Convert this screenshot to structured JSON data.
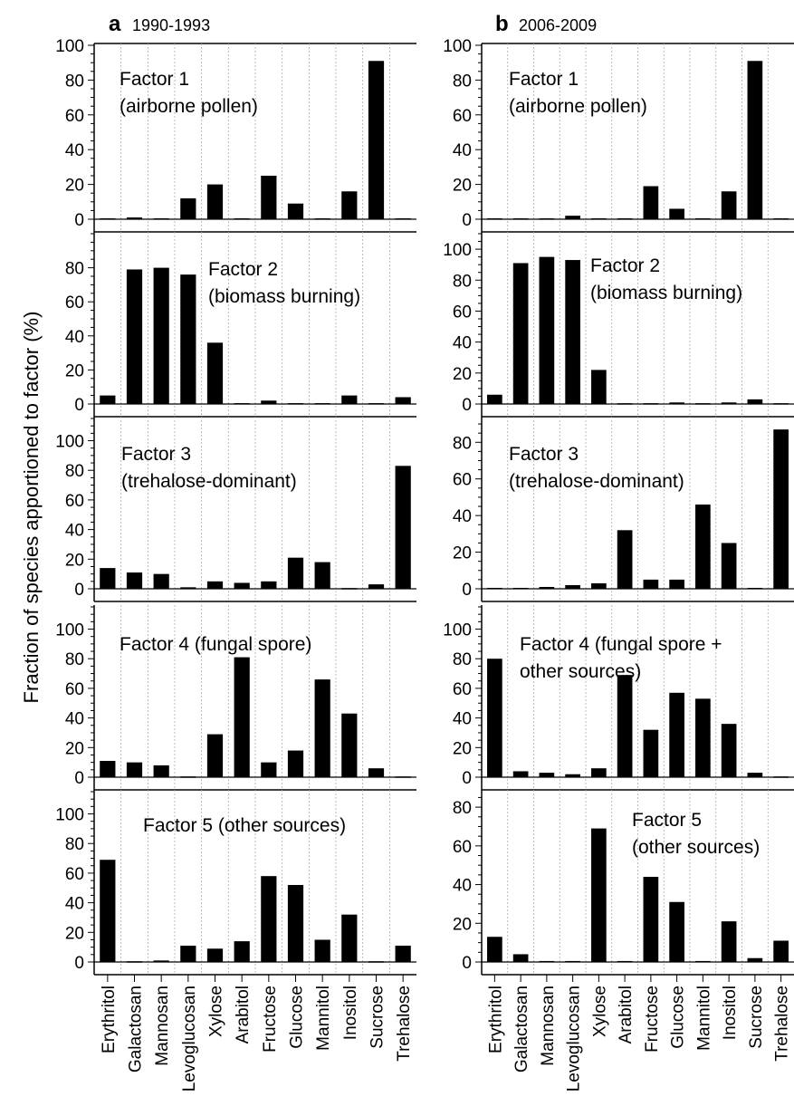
{
  "figure": {
    "ylabel": "Fraction of species apportioned to factor (%)"
  },
  "categories": [
    "Erythritol",
    "Galactosan",
    "Mannosan",
    "Levoglucosan",
    "Xylose",
    "Arabitol",
    "Fructose",
    "Glucose",
    "Mannitol",
    "Inositol",
    "Sucrose",
    "Trehalose"
  ],
  "chart_data": [
    {
      "type": "bar",
      "panel": "a",
      "period": "1990-1993",
      "factor": "Factor 1",
      "title_lines": [
        "Factor 1",
        "(airborne pollen)"
      ],
      "ylim": [
        0,
        100
      ],
      "ticks": [
        0,
        20,
        40,
        60,
        80,
        100
      ],
      "values": [
        0.5,
        1,
        0.5,
        12,
        20,
        0.5,
        25,
        9,
        0.5,
        16,
        91,
        0.5
      ]
    },
    {
      "type": "bar",
      "panel": "a",
      "period": "1990-1993",
      "factor": "Factor 2",
      "title_lines": [
        "Factor 2",
        "(biomass burning)"
      ],
      "ylim": [
        0,
        100
      ],
      "ticks": [
        0,
        20,
        40,
        60,
        80
      ],
      "values": [
        5,
        79,
        80,
        76,
        36,
        0.5,
        2,
        0.5,
        0.5,
        5,
        0.5,
        4
      ]
    },
    {
      "type": "bar",
      "panel": "a",
      "period": "1990-1993",
      "factor": "Factor 3",
      "title_lines": [
        "Factor 3",
        "(trehalose-dominant)"
      ],
      "ylim": [
        0,
        115
      ],
      "ticks": [
        0,
        20,
        40,
        60,
        80,
        100
      ],
      "values": [
        14,
        11,
        10,
        1,
        5,
        4,
        5,
        21,
        18,
        0.5,
        3,
        83
      ]
    },
    {
      "type": "bar",
      "panel": "a",
      "period": "1990-1993",
      "factor": "Factor 4",
      "title_lines": [
        "Factor 4 (fungal spore)"
      ],
      "ylim": [
        0,
        115
      ],
      "ticks": [
        0,
        20,
        40,
        60,
        80,
        100
      ],
      "values": [
        11,
        10,
        8,
        0.5,
        29,
        81,
        10,
        18,
        66,
        43,
        6,
        0.5
      ]
    },
    {
      "type": "bar",
      "panel": "a",
      "period": "1990-1993",
      "factor": "Factor 5",
      "title_lines": [
        "Factor 5 (other sources)"
      ],
      "ylim": [
        0,
        115
      ],
      "ticks": [
        0,
        20,
        40,
        60,
        80,
        100
      ],
      "values": [
        69,
        0.5,
        1,
        11,
        9,
        14,
        58,
        52,
        15,
        32,
        0.5,
        11
      ]
    },
    {
      "type": "bar",
      "panel": "b",
      "period": "2006-2009",
      "factor": "Factor 1",
      "title_lines": [
        "Factor 1",
        "(airborne pollen)"
      ],
      "ylim": [
        0,
        100
      ],
      "ticks": [
        0,
        20,
        40,
        60,
        80,
        100
      ],
      "values": [
        0.5,
        0.5,
        0.5,
        2,
        0.5,
        0.5,
        19,
        6,
        0.5,
        16,
        91,
        0.5
      ]
    },
    {
      "type": "bar",
      "panel": "b",
      "period": "2006-2009",
      "factor": "Factor 2",
      "title_lines": [
        "Factor 2",
        "(biomass burning)"
      ],
      "ylim": [
        0,
        110
      ],
      "ticks": [
        0,
        20,
        40,
        60,
        80,
        100
      ],
      "values": [
        6,
        91,
        95,
        93,
        22,
        0.5,
        0.5,
        1,
        0.5,
        1,
        3,
        0.5
      ]
    },
    {
      "type": "bar",
      "panel": "b",
      "period": "2006-2009",
      "factor": "Factor 3",
      "title_lines": [
        "Factor 3",
        "(trehalose-dominant)"
      ],
      "ylim": [
        0,
        93
      ],
      "ticks": [
        0,
        20,
        40,
        60,
        80
      ],
      "values": [
        0.5,
        0.5,
        1,
        2,
        3,
        32,
        5,
        5,
        46,
        25,
        0.5,
        87
      ]
    },
    {
      "type": "bar",
      "panel": "b",
      "period": "2006-2009",
      "factor": "Factor 4",
      "title_lines": [
        "Factor 4 (fungal spore +",
        "other sources)"
      ],
      "ylim": [
        0,
        115
      ],
      "ticks": [
        0,
        20,
        40,
        60,
        80,
        100
      ],
      "values": [
        80,
        4,
        3,
        2,
        6,
        69,
        32,
        57,
        53,
        36,
        3,
        0.5
      ]
    },
    {
      "type": "bar",
      "panel": "b",
      "period": "2006-2009",
      "factor": "Factor 5",
      "title_lines": [
        "Factor 5",
        "(other sources)"
      ],
      "ylim": [
        0,
        88
      ],
      "ticks": [
        0,
        20,
        40,
        60,
        80
      ],
      "values": [
        13,
        4,
        0.5,
        0.5,
        69,
        0.5,
        44,
        31,
        0.5,
        21,
        2,
        11
      ]
    }
  ],
  "panels": [
    {
      "letter": "a",
      "years": "1990-1993"
    },
    {
      "letter": "b",
      "years": "2006-2009"
    }
  ],
  "colors": {
    "bar": "#000000",
    "grid": "#aaaaaa",
    "axis": "#000000",
    "text": "#000000"
  }
}
